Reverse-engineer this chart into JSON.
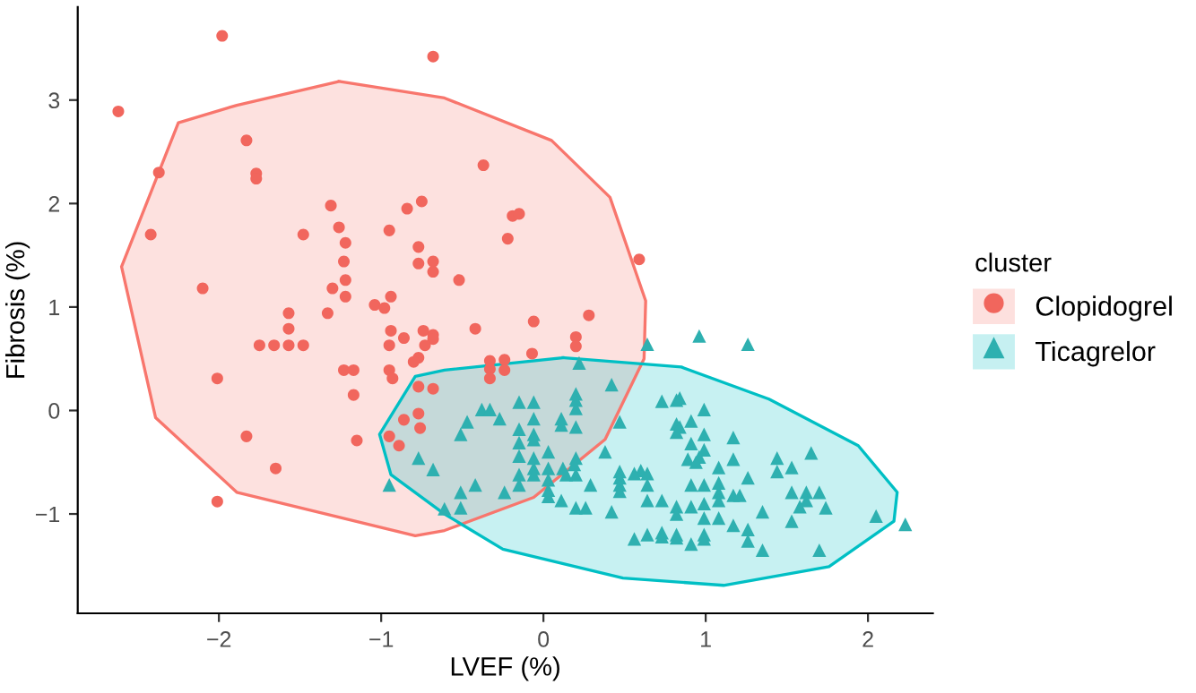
{
  "chart_data": {
    "type": "scatter",
    "xlabel": "LVEF (%)",
    "ylabel": "Fibrosis (%)",
    "legend_title": "cluster",
    "legend": "right",
    "grid": false,
    "xlim": [
      -2.87,
      2.4
    ],
    "ylim": [
      -1.96,
      3.9
    ],
    "xticks": [
      {
        "value": -2,
        "label": "−2"
      },
      {
        "value": -1,
        "label": "−1"
      },
      0,
      1,
      2
    ],
    "yticks": [
      {
        "value": -1,
        "label": "−1"
      },
      0,
      1,
      2,
      3
    ],
    "series": [
      {
        "type": "area",
        "color": "#f8766d",
        "x": [
          -1.26,
          -0.61,
          0.05,
          0.41,
          0.63,
          0.62,
          0.38,
          -0.06,
          -0.61,
          -0.79,
          -1.89,
          -2.39,
          -2.6,
          -2.25,
          -1.89,
          -1.26
        ],
        "values": [
          3.18,
          3.02,
          2.61,
          2.06,
          1.06,
          0.5,
          -0.28,
          -0.84,
          -1.16,
          -1.21,
          -0.79,
          -0.07,
          1.39,
          2.78,
          2.95,
          3.18
        ]
      },
      {
        "type": "area",
        "color": "#00bfc4",
        "x": [
          0.12,
          -0.61,
          -0.79,
          -1.01,
          -0.94,
          -0.61,
          -0.25,
          0.49,
          1.11,
          1.76,
          2.16,
          2.18,
          1.94,
          1.39,
          0.85,
          0.12
        ],
        "values": [
          0.51,
          0.39,
          0.33,
          -0.23,
          -0.62,
          -1.0,
          -1.34,
          -1.62,
          -1.69,
          -1.51,
          -1.07,
          -0.79,
          -0.34,
          0.11,
          0.42,
          0.51
        ]
      },
      {
        "name": "Clopidogrel",
        "color": "#f1665d",
        "marker": "circle",
        "x": [
          -1.98,
          -0.68,
          -2.62,
          -1.83,
          -2.37,
          -1.77,
          -1.77,
          -1.31,
          -0.75,
          -0.84,
          -2.42,
          -1.48,
          -1.26,
          -1.22,
          -0.95,
          -1.23,
          -0.77,
          -0.77,
          -0.68,
          -0.68,
          -1.22,
          -0.52,
          -2.1,
          -1.3,
          -1.22,
          -0.94,
          -1.04,
          -0.98,
          -1.57,
          -1.33,
          -0.37,
          -0.19,
          -0.15,
          -0.22,
          0.59,
          0.28,
          -0.06,
          -0.42,
          0.2,
          0.2,
          -0.07,
          -0.33,
          -0.33,
          -0.33,
          -0.24,
          -0.24,
          -1.57,
          -0.94,
          -1.75,
          -1.66,
          -1.57,
          -1.48,
          -0.95,
          -0.86,
          -0.74,
          -0.68,
          -0.68,
          -0.73,
          -0.77,
          -0.8,
          -1.23,
          -1.17,
          -0.95,
          -0.93,
          -2.01,
          -1.17,
          -0.77,
          -0.68,
          -0.77,
          -0.86,
          -0.76,
          -1.83,
          -0.95,
          -0.89,
          -1.15,
          -1.65,
          -2.01
        ],
        "values": [
          3.62,
          3.42,
          2.89,
          2.61,
          2.3,
          2.29,
          2.24,
          1.98,
          2.02,
          1.95,
          1.7,
          1.7,
          1.77,
          1.62,
          1.74,
          1.44,
          1.58,
          1.42,
          1.44,
          1.34,
          1.26,
          1.26,
          1.18,
          1.18,
          1.1,
          1.1,
          1.02,
          0.99,
          0.94,
          0.94,
          2.37,
          1.88,
          1.9,
          1.66,
          1.46,
          0.92,
          0.86,
          0.79,
          0.71,
          0.62,
          0.55,
          0.48,
          0.4,
          0.31,
          0.49,
          0.39,
          0.79,
          0.77,
          0.63,
          0.63,
          0.63,
          0.63,
          0.63,
          0.7,
          0.77,
          0.73,
          0.69,
          0.63,
          0.51,
          0.47,
          0.39,
          0.39,
          0.39,
          0.31,
          0.31,
          0.15,
          0.23,
          0.21,
          -0.03,
          -0.09,
          -0.17,
          -0.25,
          -0.25,
          -0.34,
          -0.29,
          -0.56,
          -0.88
        ]
      },
      {
        "name": "Ticagrelor",
        "color": "#2eb0b0",
        "marker": "triangle",
        "x": [
          0.64,
          0.96,
          1.26,
          0.22,
          0.42,
          -0.15,
          -0.06,
          0.2,
          0.2,
          0.2,
          0.73,
          0.82,
          0.84,
          0.99,
          -0.38,
          -0.33,
          -0.47,
          -0.27,
          -0.06,
          0.11,
          0.11,
          0.2,
          0.47,
          0.82,
          0.84,
          0.82,
          0.91,
          0.99,
          -0.15,
          -0.51,
          -0.06,
          -0.06,
          1.17,
          -0.15,
          -0.15,
          0.03,
          -0.06,
          0.2,
          0.19,
          0.38,
          0.91,
          0.99,
          0.96,
          0.89,
          0.94,
          1.17,
          1.44,
          1.44,
          1.65,
          1.53,
          1.08,
          1.26,
          0.12,
          0.14,
          0.2,
          0.29,
          0.03,
          0.03,
          -0.06,
          -0.06,
          -0.15,
          -0.15,
          0.03,
          0.03,
          0.11,
          -0.24,
          -0.42,
          -0.51,
          -0.61,
          -0.51,
          0.2,
          0.26,
          0.42,
          0.47,
          0.47,
          0.47,
          0.47,
          0.6,
          0.56,
          0.64,
          0.64,
          0.64,
          0.73,
          0.91,
          0.99,
          0.99,
          1.08,
          1.08,
          1.08,
          1.17,
          1.21,
          0.82,
          0.82,
          0.91,
          0.99,
          1.08,
          1.17,
          1.35,
          1.53,
          1.53,
          1.62,
          1.7,
          1.58,
          1.62,
          1.74,
          2.05,
          2.23,
          0.56,
          0.64,
          0.73,
          0.73,
          0.82,
          0.82,
          0.91,
          0.99,
          0.99,
          1.26,
          1.26,
          1.35,
          1.7,
          -0.77,
          -0.68,
          -0.95
        ],
        "values": [
          0.64,
          0.72,
          0.64,
          0.46,
          0.25,
          0.08,
          0.08,
          0.16,
          0.1,
          0.02,
          0.09,
          0.1,
          0.12,
          0.01,
          0.01,
          0.01,
          -0.11,
          -0.08,
          -0.08,
          -0.08,
          -0.14,
          -0.16,
          -0.11,
          -0.13,
          -0.16,
          -0.21,
          -0.1,
          -0.23,
          -0.18,
          -0.23,
          -0.23,
          -0.28,
          -0.26,
          -0.31,
          -0.44,
          -0.4,
          -0.46,
          -0.46,
          -0.52,
          -0.4,
          -0.32,
          -0.38,
          -0.45,
          -0.47,
          -0.5,
          -0.47,
          -0.46,
          -0.59,
          -0.41,
          -0.55,
          -0.55,
          -0.65,
          -0.56,
          -0.62,
          -0.62,
          -0.72,
          -0.56,
          -0.67,
          -0.56,
          -0.62,
          -0.62,
          -0.72,
          -0.77,
          -0.83,
          -0.87,
          -0.79,
          -0.72,
          -0.79,
          -0.95,
          -0.94,
          -0.94,
          -0.94,
          -0.98,
          -0.59,
          -0.65,
          -0.72,
          -0.78,
          -0.58,
          -0.61,
          -0.61,
          -0.72,
          -0.87,
          -0.87,
          -0.72,
          -0.72,
          -0.9,
          -0.7,
          -0.79,
          -0.87,
          -0.82,
          -0.82,
          -0.93,
          -1.0,
          -0.93,
          -1.04,
          -1.04,
          -1.11,
          -0.98,
          -1.07,
          -0.79,
          -0.79,
          -0.79,
          -0.93,
          -0.87,
          -0.94,
          -1.02,
          -1.1,
          -1.24,
          -1.2,
          -1.18,
          -1.22,
          -1.2,
          -1.23,
          -1.29,
          -1.2,
          -1.24,
          -1.15,
          -1.26,
          -1.35,
          -1.35,
          -0.46,
          -0.57,
          -0.72
        ]
      }
    ]
  }
}
